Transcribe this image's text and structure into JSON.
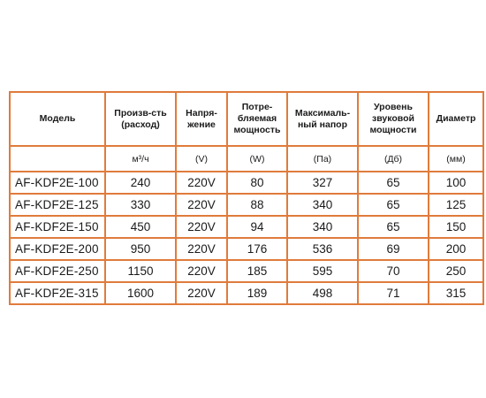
{
  "headers": [
    "Модель",
    "Произв-сть\n(расход)",
    "Напря-\nжение",
    "Потре-\nбляемая\nмощность",
    "Максималь-\nный напор",
    "Уровень\nзвуковой\nмощности",
    "Диаметр"
  ],
  "units": [
    "",
    "м³/ч",
    "(V)",
    "(W)",
    "(Па)",
    "(Дб)",
    "(мм)"
  ],
  "rows": [
    [
      "AF-KDF2E-100",
      "240",
      "220V",
      "80",
      "327",
      "65",
      "100"
    ],
    [
      "AF-KDF2E-125",
      "330",
      "220V",
      "88",
      "340",
      "65",
      "125"
    ],
    [
      "AF-KDF2E-150",
      "450",
      "220V",
      "94",
      "340",
      "65",
      "150"
    ],
    [
      "AF-KDF2E-200",
      "950",
      "220V",
      "176",
      "536",
      "69",
      "200"
    ],
    [
      "AF-KDF2E-250",
      "1150",
      "220V",
      "185",
      "595",
      "70",
      "250"
    ],
    [
      "AF-KDF2E-315",
      "1600",
      "220V",
      "189",
      "498",
      "71",
      "315"
    ]
  ],
  "colors": {
    "border": "#e07b3c",
    "text": "#1a1a1a",
    "background": "#ffffff"
  }
}
